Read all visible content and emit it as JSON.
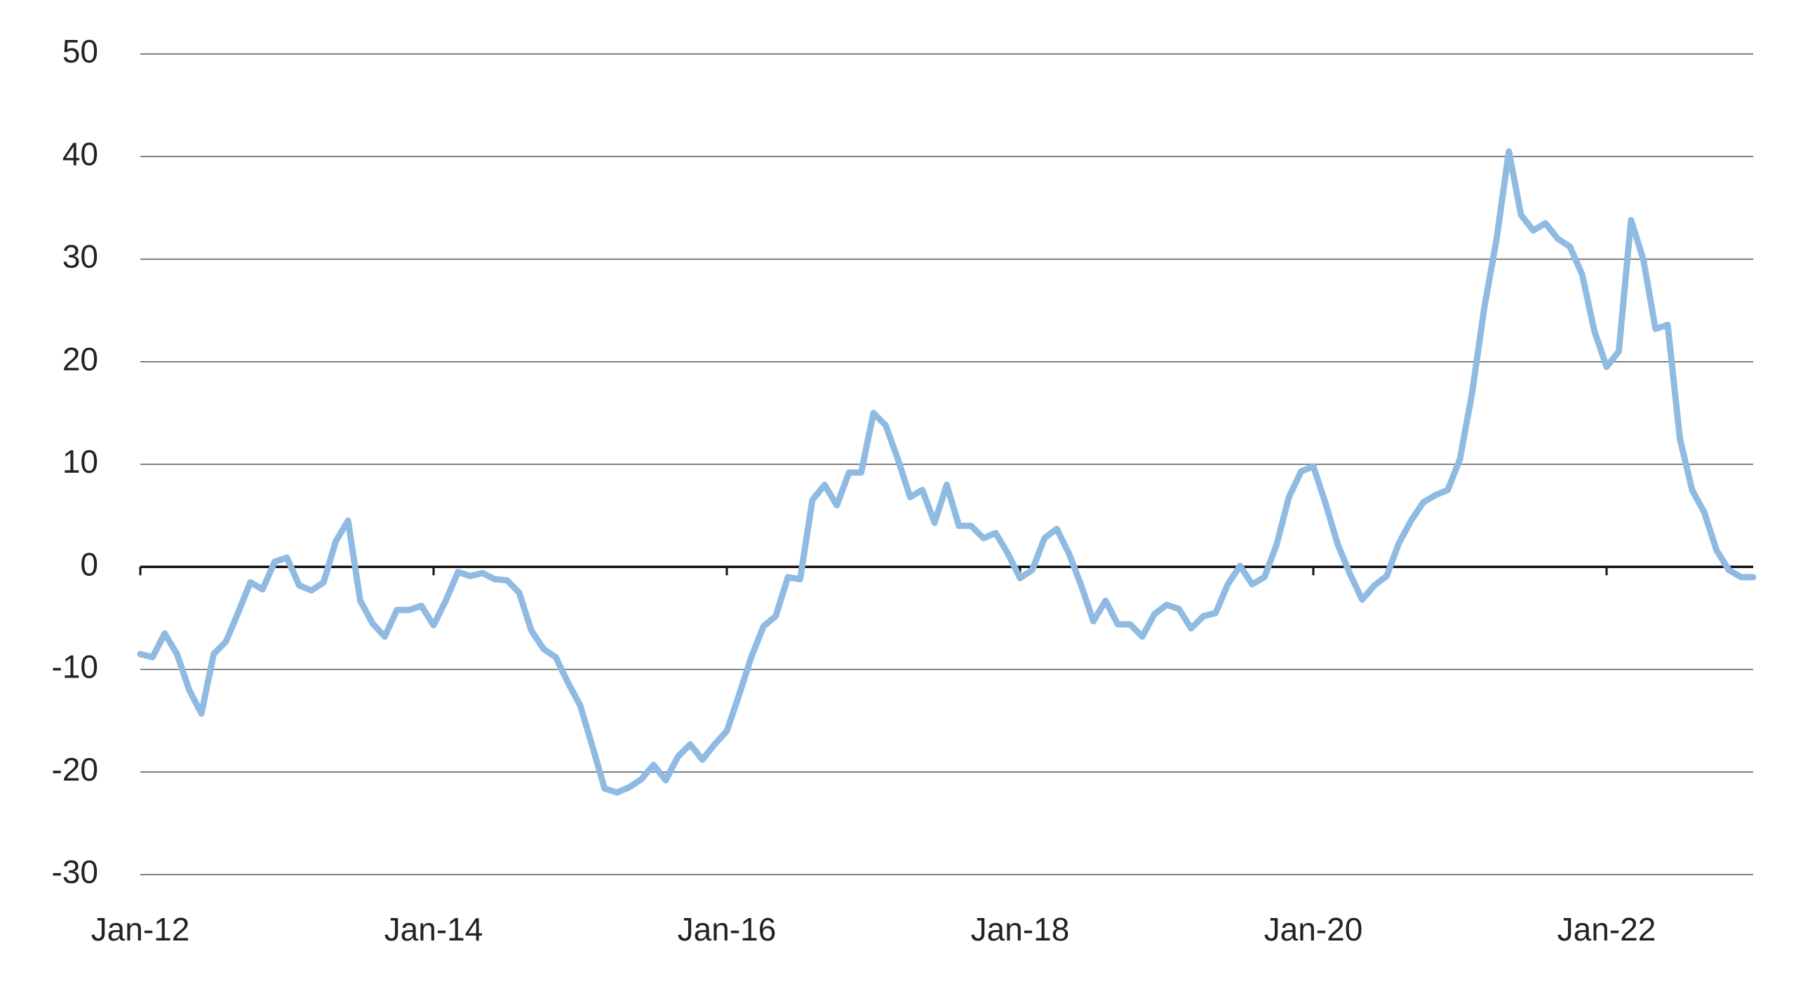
{
  "chart_data": {
    "type": "line",
    "categories": [
      "Jan-12",
      null,
      null,
      null,
      null,
      null,
      null,
      null,
      null,
      null,
      null,
      null,
      null,
      null,
      null,
      null,
      null,
      null,
      null,
      null,
      null,
      null,
      null,
      null,
      "Jan-14",
      null,
      null,
      null,
      null,
      null,
      null,
      null,
      null,
      null,
      null,
      null,
      null,
      null,
      null,
      null,
      null,
      null,
      null,
      null,
      null,
      null,
      null,
      null,
      "Jan-16",
      null,
      null,
      null,
      null,
      null,
      null,
      null,
      null,
      null,
      null,
      null,
      null,
      null,
      null,
      null,
      null,
      null,
      null,
      null,
      null,
      null,
      null,
      null,
      "Jan-18",
      null,
      null,
      null,
      null,
      null,
      null,
      null,
      null,
      null,
      null,
      null,
      null,
      null,
      null,
      null,
      null,
      null,
      null,
      null,
      null,
      null,
      null,
      null,
      "Jan-20",
      null,
      null,
      null,
      null,
      null,
      null,
      null,
      null,
      null,
      null,
      null,
      null,
      null,
      null,
      null,
      null,
      null,
      null,
      null,
      null,
      null,
      null,
      null,
      "Jan-22",
      null,
      null,
      null,
      null,
      null,
      null,
      null,
      null,
      null,
      null,
      null,
      null
    ],
    "series": [
      {
        "color": "#8fbbe3",
        "values": [
          -8.5,
          -8.8,
          -6.5,
          -8.5,
          -12,
          -14.3,
          -8.5,
          -7.3,
          -4.5,
          -1.5,
          -2.2,
          0.5,
          0.9,
          -1.8,
          -2.3,
          -1.5,
          2.5,
          4.5,
          -3.3,
          -5.5,
          -6.8,
          -4.2,
          -4.2,
          -3.8,
          -5.7,
          -3.3,
          -0.5,
          -0.9,
          -0.6,
          -1.2,
          -1.3,
          -2.5,
          -6.2,
          -8,
          -8.8,
          -11.3,
          -13.5,
          -17.5,
          -21.6,
          -22,
          -21.5,
          -20.7,
          -19.3,
          -20.8,
          -18.5,
          -17.3,
          -18.8,
          -17.3,
          -16,
          -12.5,
          -8.8,
          -5.8,
          -4.8,
          -1,
          -1.2,
          6.5,
          8,
          6,
          9.2,
          9.2,
          15,
          13.8,
          10.5,
          6.8,
          7.5,
          4.3,
          8,
          4,
          4,
          2.8,
          3.3,
          1.3,
          -1.1,
          -0.3,
          2.8,
          3.7,
          1.3,
          -1.8,
          -5.3,
          -3.3,
          -5.6,
          -5.6,
          -6.8,
          -4.6,
          -3.7,
          -4.1,
          -6,
          -4.8,
          -4.5,
          -1.7,
          0.1,
          -1.7,
          -1,
          2.2,
          6.8,
          9.3,
          9.8,
          6.2,
          2.2,
          -0.7,
          -3.2,
          -1.8,
          -0.9,
          2.3,
          4.5,
          6.3,
          7,
          7.5,
          10.5,
          17,
          25.3,
          32,
          40.5,
          34.3,
          32.8,
          33.5,
          32,
          31.2,
          28.5,
          23,
          19.5,
          21,
          33.8,
          30,
          23.2,
          23.6,
          12.5,
          7.5,
          5.3,
          1.6,
          -0.3,
          -1,
          -1
        ]
      }
    ],
    "ylim": [
      -30,
      50
    ],
    "yticks": [
      -30,
      -20,
      -10,
      0,
      10,
      20,
      30,
      40,
      50
    ],
    "grid": true
  }
}
